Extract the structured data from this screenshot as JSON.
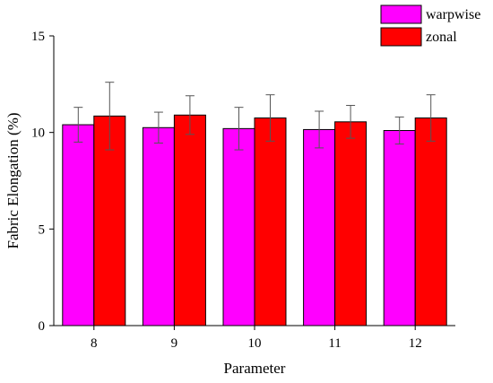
{
  "chart_data": {
    "type": "bar",
    "title": "",
    "xlabel": "Parameter",
    "ylabel": "Fabric Elongation (%)",
    "categories": [
      "8",
      "9",
      "10",
      "11",
      "12"
    ],
    "ylim": [
      0,
      15
    ],
    "yticks": [
      0,
      5,
      10,
      15
    ],
    "grid": false,
    "legend_position": "top-right",
    "series": [
      {
        "name": "warpwise",
        "color": "#ff00ff",
        "values": [
          10.4,
          10.25,
          10.2,
          10.15,
          10.1
        ],
        "error": [
          0.9,
          0.8,
          1.1,
          0.95,
          0.7
        ]
      },
      {
        "name": "zonal",
        "color": "#ff0000",
        "values": [
          10.85,
          10.9,
          10.75,
          10.55,
          10.75
        ],
        "error": [
          1.75,
          1.0,
          1.2,
          0.85,
          1.2
        ]
      }
    ]
  }
}
